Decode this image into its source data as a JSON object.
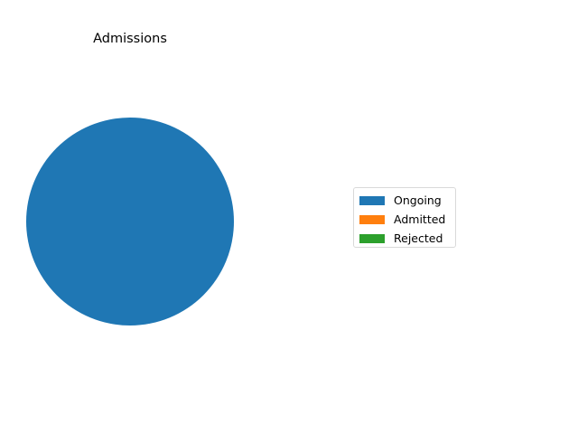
{
  "chart_data": {
    "type": "pie",
    "title": "Admissions",
    "categories": [
      "Ongoing",
      "Admitted",
      "Rejected"
    ],
    "values": [
      100,
      0,
      0
    ],
    "colors": [
      "#1f77b4",
      "#ff7f0e",
      "#2ca02c"
    ],
    "legend_position": "right"
  }
}
